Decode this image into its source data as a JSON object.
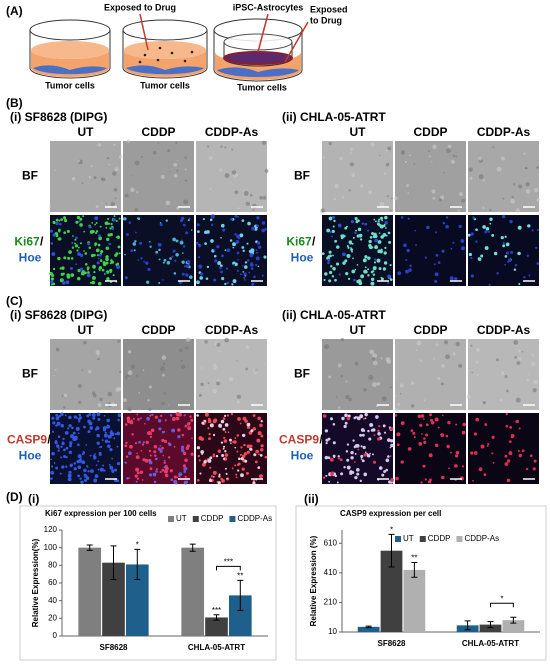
{
  "panel_labels": [
    "(A)",
    "(B)",
    "(C)",
    "(D)"
  ],
  "schematic": {
    "labels": [
      "Exposed to Drug",
      "iPSC-Astrocytes",
      "Exposed",
      "to Drug",
      "Tumor cells",
      "Tumor cells",
      "Tumor cells"
    ]
  },
  "imaging": [
    {
      "subpanels": [
        {
          "title": "(i) SF8628 (DIPG)",
          "columns": [
            "UT",
            "CDDP",
            "CDDP-As"
          ],
          "rows": [
            [
              "BF"
            ],
            [
              "Ki67",
              "/",
              "Hoe"
            ]
          ]
        },
        {
          "title": "(ii) CHLA-05-ATRT",
          "columns": [
            "UT",
            "CDDP",
            "CDDP-As"
          ],
          "rows": [
            [
              "BF"
            ],
            [
              "Ki67",
              "/",
              "Hoe"
            ]
          ]
        }
      ]
    },
    {
      "subpanels": [
        {
          "title": "(i) SF8628 (DIPG)",
          "columns": [
            "UT",
            "CDDP",
            "CDDP-As"
          ],
          "rows": [
            [
              "BF"
            ],
            [
              "CASP9",
              "/",
              "Hoe"
            ]
          ]
        },
        {
          "title": "(ii) CHLA-05-ATRT",
          "columns": [
            "UT",
            "CDDP",
            "CDDP-As"
          ],
          "rows": [
            [
              "BF"
            ],
            [
              "CASP9",
              "/",
              "Hoe"
            ]
          ]
        }
      ]
    }
  ],
  "chart_data": [
    {
      "type": "bar",
      "panel_label": "(i)",
      "title": "Ki67 expression per 100 cells",
      "ylabel": "Relative Expression(%)",
      "categories": [
        "SF8628",
        "CHLA-05-ATRT"
      ],
      "series": [
        {
          "name": "UT",
          "color": "#7f7f7f",
          "values": [
            100,
            100
          ],
          "errors": [
            3,
            4
          ]
        },
        {
          "name": "CDDP",
          "color": "#404040",
          "values": [
            83,
            21
          ],
          "errors": [
            19,
            3
          ]
        },
        {
          "name": "CDDP-As",
          "color": "#1f5f8b",
          "values": [
            81,
            46
          ],
          "errors": [
            17,
            17
          ]
        }
      ],
      "ylim": [
        0,
        120
      ],
      "yticks": [
        0,
        20,
        40,
        60,
        80,
        100,
        120
      ],
      "annotations": [
        "*",
        "***",
        "**",
        "***"
      ]
    },
    {
      "type": "bar",
      "panel_label": "(ii)",
      "title": "CASP9 expression per cell",
      "ylabel": "Relative Expression (%)",
      "categories": [
        "SF8628",
        "CHLA-05-ATRT"
      ],
      "series": [
        {
          "name": "UT",
          "color": "#1f5f8b",
          "values": [
            45,
            55
          ],
          "errors": [
            5,
            30
          ]
        },
        {
          "name": "CDDP",
          "color": "#404040",
          "values": [
            560,
            60
          ],
          "errors": [
            110,
            20
          ]
        },
        {
          "name": "CDDP-As",
          "color": "#b0b0b0",
          "values": [
            430,
            90
          ],
          "errors": [
            50,
            20
          ]
        }
      ],
      "ylim": [
        10,
        700
      ],
      "yticks": [
        10,
        210,
        410,
        610
      ],
      "annotations": [
        "*",
        "**",
        "*"
      ]
    }
  ]
}
